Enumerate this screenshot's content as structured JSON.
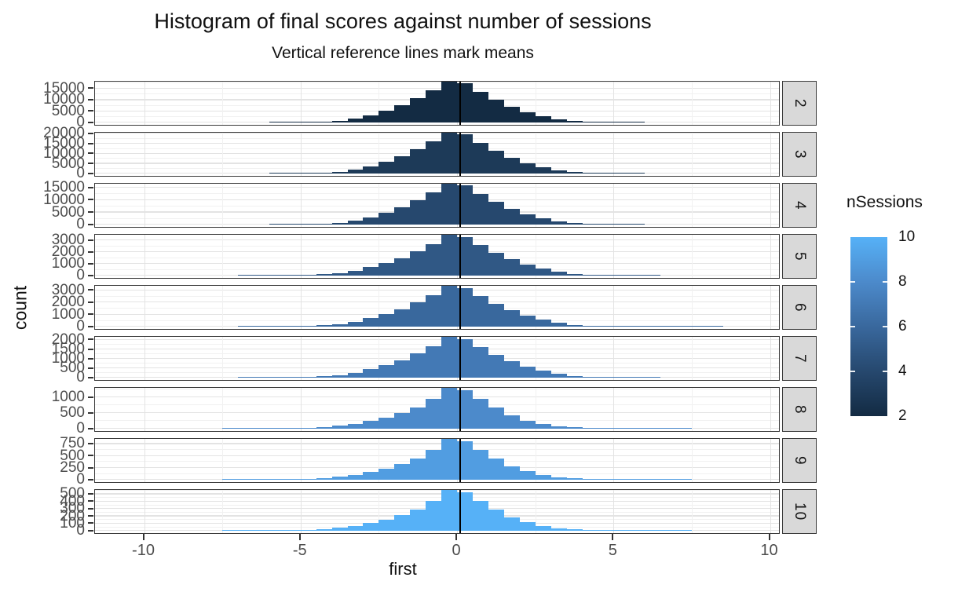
{
  "title": "Histogram of final scores against number of sessions",
  "subtitle": "Vertical reference lines mark means",
  "axes": {
    "x_label": "first",
    "y_label": "count",
    "x_ticks": [
      -10,
      -5,
      0,
      5,
      10
    ]
  },
  "legend": {
    "title": "nSessions",
    "tick_labels": [
      10,
      8,
      6,
      4,
      2
    ],
    "gradient_top": "#56B1F7",
    "gradient_mid_hi": "#4C8ACB",
    "gradient_mid": "#39689D",
    "gradient_mid_lo": "#26486E",
    "gradient_bottom": "#132B43"
  },
  "chart_data": {
    "type": "bar",
    "subtype": "faceted-histogram",
    "x_field": "first",
    "y_field": "count",
    "facet_field": "nSessions",
    "bin_width": 0.5,
    "x_range": [
      -11.6,
      10.3
    ],
    "reference_line_note": "vertical black line marks mean of each facet",
    "panels": [
      {
        "nSessions": "2",
        "fill": "#132B43",
        "mean": 0.1,
        "y_ticks": [
          0,
          5000,
          10000,
          15000
        ],
        "y_max": 18000,
        "x0": -6.0,
        "heights": [
          36,
          90,
          216,
          450,
          990,
          1890,
          3240,
          5220,
          7740,
          10800,
          14220,
          18000,
          17370,
          13680,
          10170,
          7200,
          4770,
          2880,
          1620,
          864,
          414,
          198,
          90,
          36
        ]
      },
      {
        "nSessions": "3",
        "fill": "#1D3A58",
        "mean": 0.1,
        "y_ticks": [
          0,
          5000,
          10000,
          15000,
          20000
        ],
        "y_max": 20400,
        "x0": -6.0,
        "heights": [
          41,
          102,
          245,
          510,
          1122,
          2142,
          3672,
          5916,
          8772,
          12240,
          16116,
          20400,
          19690,
          15500,
          11530,
          8160,
          5400,
          3265,
          1835,
          980,
          470,
          225,
          100,
          40
        ]
      },
      {
        "nSessions": "4",
        "fill": "#26486E",
        "mean": 0.1,
        "y_ticks": [
          0,
          5000,
          10000,
          15000
        ],
        "y_max": 16500,
        "x0": -6.0,
        "heights": [
          33,
          83,
          200,
          410,
          910,
          1730,
          2970,
          4785,
          7095,
          9900,
          13035,
          16500,
          15925,
          12540,
          9320,
          6600,
          4370,
          2640,
          1485,
          790,
          380,
          180,
          83,
          33
        ]
      },
      {
        "nSessions": "5",
        "fill": "#305885",
        "mean": 0.1,
        "y_ticks": [
          0,
          1000,
          2000,
          3000
        ],
        "y_max": 3450,
        "x0": -7.0,
        "heights": [
          3,
          7,
          14,
          31,
          69,
          138,
          259,
          449,
          725,
          1070,
          1518,
          2070,
          2691,
          3450,
          3312,
          2588,
          1967,
          1415,
          966,
          604,
          345,
          190,
          97,
          48,
          24,
          10,
          5
        ]
      },
      {
        "nSessions": "6",
        "fill": "#39689D",
        "mean": 0.1,
        "y_ticks": [
          0,
          1000,
          2000,
          3000
        ],
        "y_max": 3350,
        "x0": -7.0,
        "heights": [
          3,
          7,
          13,
          30,
          67,
          134,
          251,
          436,
          704,
          1039,
          1474,
          2010,
          2613,
          3350,
          3216,
          2513,
          1910,
          1374,
          938,
          586,
          335,
          184,
          94,
          47,
          23,
          10,
          5,
          3,
          2,
          1,
          1
        ]
      },
      {
        "nSessions": "7",
        "fill": "#4379B5",
        "mean": 0.1,
        "y_ticks": [
          0,
          500,
          1000,
          1500,
          2000
        ],
        "y_max": 2150,
        "x0": -7.0,
        "heights": [
          2,
          4,
          9,
          19,
          43,
          86,
          161,
          280,
          452,
          667,
          946,
          1290,
          1677,
          2150,
          2064,
          1613,
          1226,
          882,
          602,
          376,
          215,
          118,
          60,
          30,
          15,
          6,
          3
        ]
      },
      {
        "nSessions": "8",
        "fill": "#4C8ACB",
        "mean": 0.1,
        "y_ticks": [
          0,
          500,
          1000
        ],
        "y_max": 1300,
        "x0": -7.5,
        "heights": [
          3,
          5,
          9,
          16,
          26,
          44,
          72,
          111,
          169,
          254,
          364,
          507,
          689,
          962,
          1300,
          1235,
          949,
          676,
          442,
          273,
          163,
          91,
          52,
          29,
          16,
          9,
          5,
          3,
          2,
          1
        ]
      },
      {
        "nSessions": "9",
        "fill": "#519DE1",
        "mean": 0.1,
        "y_ticks": [
          0,
          250,
          500,
          750
        ],
        "y_max": 850,
        "x0": -7.5,
        "heights": [
          2,
          3,
          6,
          10,
          17,
          29,
          47,
          72,
          111,
          166,
          238,
          332,
          451,
          629,
          850,
          808,
          621,
          442,
          289,
          179,
          106,
          60,
          34,
          19,
          10,
          6,
          3,
          2,
          1,
          1
        ]
      },
      {
        "nSessions": "10",
        "fill": "#56B1F7",
        "mean": 0.1,
        "y_ticks": [
          0,
          100,
          200,
          300,
          400,
          500
        ],
        "y_max": 555,
        "x0": -7.5,
        "heights": [
          1,
          2,
          4,
          7,
          11,
          19,
          31,
          47,
          72,
          108,
          155,
          216,
          294,
          411,
          555,
          527,
          405,
          289,
          189,
          117,
          69,
          39,
          22,
          12,
          7,
          4,
          2,
          1,
          1,
          1
        ]
      }
    ]
  }
}
